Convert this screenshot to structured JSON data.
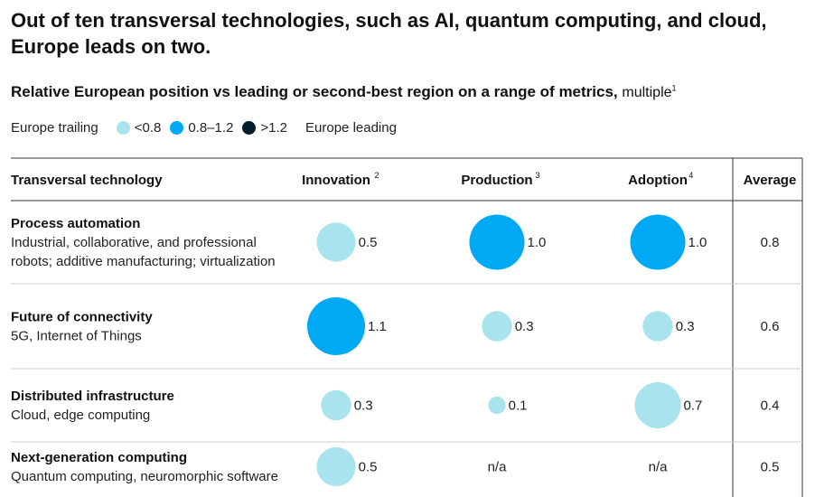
{
  "headline": "Out of ten transversal technologies, such as AI, quantum computing, and cloud, Europe leads on two.",
  "subtitle": {
    "bold": "Relative European position vs leading or second-best region on a range of metrics,",
    "light": "multiple",
    "footnote": "1"
  },
  "legend": {
    "left_label": "Europe trailing",
    "right_label": "Europe leading",
    "items": [
      {
        "label": "<0.8",
        "color": "#a8e3ee"
      },
      {
        "label": "0.8–1.2",
        "color": "#00a9f4"
      },
      {
        "label": ">1.2",
        "color": "#051c2c"
      }
    ]
  },
  "chart_data": {
    "type": "table",
    "columns": [
      {
        "label": "Transversal technology",
        "footnote": ""
      },
      {
        "label": "Innovation",
        "footnote": "2"
      },
      {
        "label": "Production",
        "footnote": "3"
      },
      {
        "label": "Adoption",
        "footnote": "4"
      },
      {
        "label": "Average",
        "footnote": ""
      }
    ],
    "rows": [
      {
        "title": "Process automation",
        "description": [
          "Industrial, collaborative, and professional",
          "robots; additive manufacturing; virtualization"
        ],
        "innovation": 0.5,
        "production": 1.0,
        "adoption": 1.0,
        "average": "0.8"
      },
      {
        "title": "Future of connectivity",
        "description": [
          "5G, Internet of Things"
        ],
        "innovation": 1.1,
        "production": 0.3,
        "adoption": 0.3,
        "average": "0.6"
      },
      {
        "title": "Distributed infrastructure",
        "description": [
          "Cloud, edge computing"
        ],
        "innovation": 0.3,
        "production": 0.1,
        "adoption": 0.7,
        "average": "0.4"
      },
      {
        "title": "Next-generation computing",
        "description": [
          "Quantum computing, neuromorphic software"
        ],
        "innovation": 0.5,
        "production": null,
        "adoption": null,
        "average": "0.5"
      }
    ],
    "na_label": "n/a",
    "color_scale": {
      "low": "#a8e3ee",
      "mid": "#00a9f4",
      "high": "#051c2c"
    }
  }
}
